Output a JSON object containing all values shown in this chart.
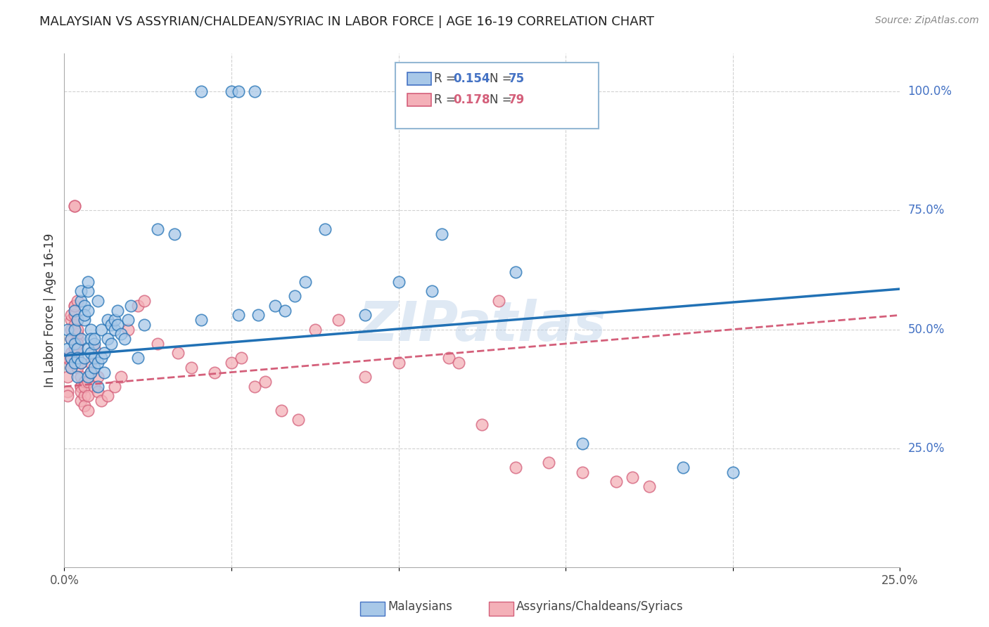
{
  "title": "MALAYSIAN VS ASSYRIAN/CHALDEAN/SYRIAC IN LABOR FORCE | AGE 16-19 CORRELATION CHART",
  "source": "Source: ZipAtlas.com",
  "ylabel": "In Labor Force | Age 16-19",
  "background_color": "#ffffff",
  "grid_color": "#cccccc",
  "scatter_blue_color": "#a8c8e8",
  "scatter_pink_color": "#f4b0b8",
  "line_blue_color": "#2171b5",
  "line_pink_color": "#d45f7a",
  "watermark": "ZIPatlas",
  "blue_points": [
    [
      0.001,
      0.46
    ],
    [
      0.001,
      0.5
    ],
    [
      0.002,
      0.44
    ],
    [
      0.002,
      0.48
    ],
    [
      0.002,
      0.42
    ],
    [
      0.003,
      0.47
    ],
    [
      0.003,
      0.5
    ],
    [
      0.003,
      0.54
    ],
    [
      0.003,
      0.43
    ],
    [
      0.004,
      0.46
    ],
    [
      0.004,
      0.52
    ],
    [
      0.004,
      0.44
    ],
    [
      0.004,
      0.4
    ],
    [
      0.005,
      0.48
    ],
    [
      0.005,
      0.43
    ],
    [
      0.005,
      0.56
    ],
    [
      0.005,
      0.58
    ],
    [
      0.006,
      0.52
    ],
    [
      0.006,
      0.44
    ],
    [
      0.006,
      0.55
    ],
    [
      0.006,
      0.53
    ],
    [
      0.007,
      0.46
    ],
    [
      0.007,
      0.4
    ],
    [
      0.007,
      0.54
    ],
    [
      0.007,
      0.58
    ],
    [
      0.007,
      0.6
    ],
    [
      0.008,
      0.5
    ],
    [
      0.008,
      0.48
    ],
    [
      0.008,
      0.45
    ],
    [
      0.008,
      0.41
    ],
    [
      0.009,
      0.47
    ],
    [
      0.009,
      0.42
    ],
    [
      0.009,
      0.44
    ],
    [
      0.009,
      0.48
    ],
    [
      0.01,
      0.56
    ],
    [
      0.01,
      0.43
    ],
    [
      0.01,
      0.38
    ],
    [
      0.011,
      0.44
    ],
    [
      0.011,
      0.5
    ],
    [
      0.012,
      0.45
    ],
    [
      0.012,
      0.41
    ],
    [
      0.013,
      0.52
    ],
    [
      0.013,
      0.48
    ],
    [
      0.014,
      0.51
    ],
    [
      0.014,
      0.47
    ],
    [
      0.015,
      0.5
    ],
    [
      0.015,
      0.52
    ],
    [
      0.016,
      0.54
    ],
    [
      0.016,
      0.51
    ],
    [
      0.017,
      0.49
    ],
    [
      0.018,
      0.48
    ],
    [
      0.019,
      0.52
    ],
    [
      0.02,
      0.55
    ],
    [
      0.022,
      0.44
    ],
    [
      0.024,
      0.51
    ],
    [
      0.028,
      0.71
    ],
    [
      0.033,
      0.7
    ],
    [
      0.041,
      0.52
    ],
    [
      0.052,
      0.53
    ],
    [
      0.058,
      0.53
    ],
    [
      0.063,
      0.55
    ],
    [
      0.066,
      0.54
    ],
    [
      0.069,
      0.57
    ],
    [
      0.072,
      0.6
    ],
    [
      0.041,
      1.0
    ],
    [
      0.05,
      1.0
    ],
    [
      0.052,
      1.0
    ],
    [
      0.057,
      1.0
    ],
    [
      0.113,
      0.7
    ],
    [
      0.078,
      0.71
    ],
    [
      0.09,
      0.53
    ],
    [
      0.1,
      0.6
    ],
    [
      0.11,
      0.58
    ],
    [
      0.135,
      0.62
    ],
    [
      0.155,
      0.26
    ],
    [
      0.185,
      0.21
    ],
    [
      0.2,
      0.2
    ]
  ],
  "pink_points": [
    [
      0.001,
      0.44
    ],
    [
      0.001,
      0.4
    ],
    [
      0.001,
      0.37
    ],
    [
      0.001,
      0.36
    ],
    [
      0.002,
      0.48
    ],
    [
      0.002,
      0.43
    ],
    [
      0.002,
      0.5
    ],
    [
      0.002,
      0.45
    ],
    [
      0.002,
      0.42
    ],
    [
      0.002,
      0.52
    ],
    [
      0.002,
      0.53
    ],
    [
      0.002,
      0.44
    ],
    [
      0.003,
      0.55
    ],
    [
      0.003,
      0.76
    ],
    [
      0.003,
      0.47
    ],
    [
      0.003,
      0.46
    ],
    [
      0.003,
      0.53
    ],
    [
      0.003,
      0.76
    ],
    [
      0.003,
      0.51
    ],
    [
      0.003,
      0.55
    ],
    [
      0.004,
      0.48
    ],
    [
      0.004,
      0.52
    ],
    [
      0.004,
      0.56
    ],
    [
      0.004,
      0.49
    ],
    [
      0.004,
      0.44
    ],
    [
      0.004,
      0.5
    ],
    [
      0.004,
      0.46
    ],
    [
      0.004,
      0.42
    ],
    [
      0.004,
      0.47
    ],
    [
      0.005,
      0.43
    ],
    [
      0.005,
      0.38
    ],
    [
      0.005,
      0.35
    ],
    [
      0.005,
      0.38
    ],
    [
      0.005,
      0.4
    ],
    [
      0.005,
      0.37
    ],
    [
      0.006,
      0.39
    ],
    [
      0.006,
      0.36
    ],
    [
      0.006,
      0.34
    ],
    [
      0.006,
      0.38
    ],
    [
      0.007,
      0.33
    ],
    [
      0.007,
      0.36
    ],
    [
      0.007,
      0.39
    ],
    [
      0.008,
      0.41
    ],
    [
      0.008,
      0.43
    ],
    [
      0.009,
      0.46
    ],
    [
      0.009,
      0.38
    ],
    [
      0.01,
      0.4
    ],
    [
      0.01,
      0.37
    ],
    [
      0.011,
      0.35
    ],
    [
      0.013,
      0.36
    ],
    [
      0.015,
      0.38
    ],
    [
      0.017,
      0.4
    ],
    [
      0.019,
      0.5
    ],
    [
      0.022,
      0.55
    ],
    [
      0.024,
      0.56
    ],
    [
      0.028,
      0.47
    ],
    [
      0.034,
      0.45
    ],
    [
      0.038,
      0.42
    ],
    [
      0.045,
      0.41
    ],
    [
      0.05,
      0.43
    ],
    [
      0.053,
      0.44
    ],
    [
      0.057,
      0.38
    ],
    [
      0.06,
      0.39
    ],
    [
      0.065,
      0.33
    ],
    [
      0.07,
      0.31
    ],
    [
      0.075,
      0.5
    ],
    [
      0.082,
      0.52
    ],
    [
      0.09,
      0.4
    ],
    [
      0.1,
      0.43
    ],
    [
      0.115,
      0.44
    ],
    [
      0.125,
      0.3
    ],
    [
      0.135,
      0.21
    ],
    [
      0.145,
      0.22
    ],
    [
      0.155,
      0.2
    ],
    [
      0.165,
      0.18
    ],
    [
      0.17,
      0.19
    ],
    [
      0.175,
      0.17
    ],
    [
      0.118,
      0.43
    ],
    [
      0.13,
      0.56
    ]
  ]
}
